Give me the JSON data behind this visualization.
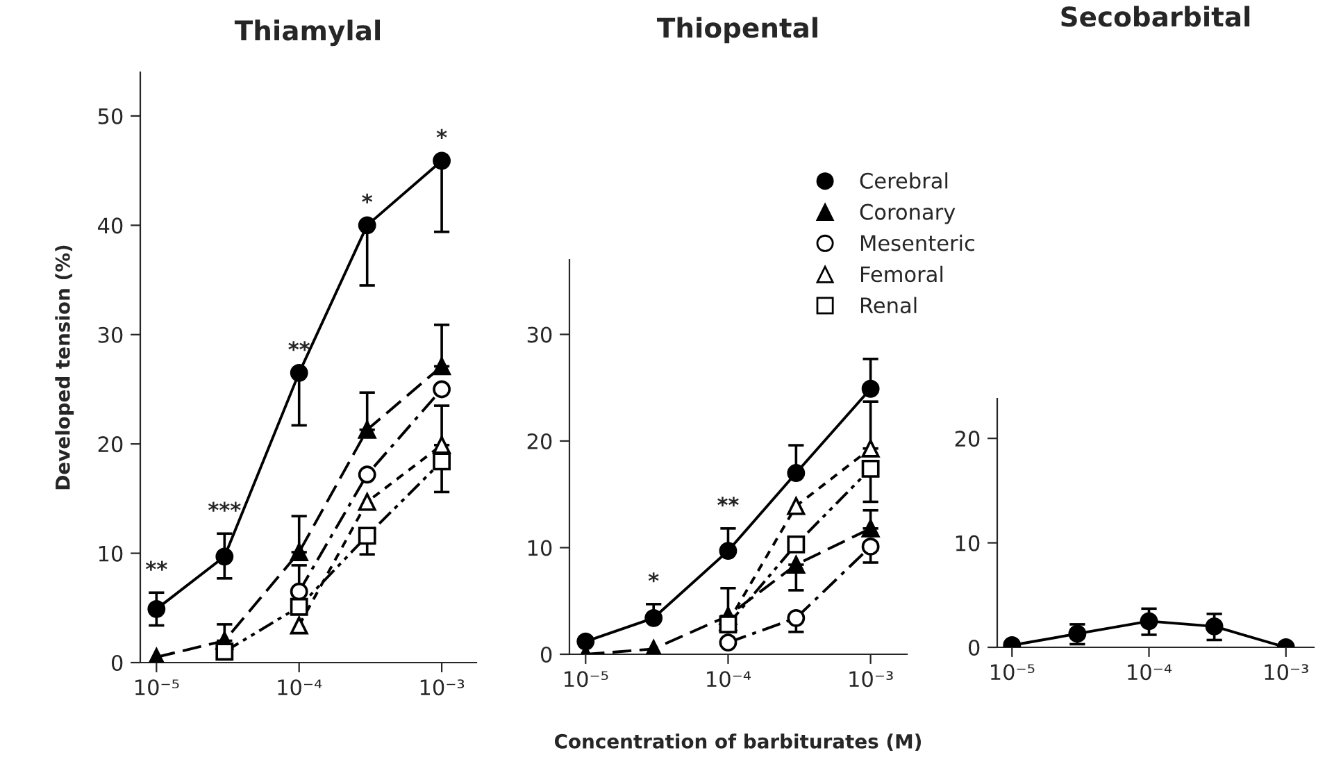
{
  "chart_data": [
    {
      "type": "line",
      "title": "Thiamylal",
      "ylabel": "Developed tension (%)",
      "x": [
        1e-05,
        3e-05,
        0.0001,
        0.0003,
        0.001
      ],
      "log": "x",
      "xlim": [
        7.7e-06,
        0.00175
      ],
      "xticks": [
        {
          "value": 1e-05,
          "label": "10⁻⁵"
        },
        {
          "value": 0.0001,
          "label": "10⁻⁴"
        },
        {
          "value": 0.001,
          "label": "10⁻³"
        }
      ],
      "ylim": [
        0,
        54
      ],
      "yticks": [
        0,
        10,
        20,
        30,
        40,
        50
      ],
      "grid": false,
      "legend": false,
      "series": [
        {
          "color": "#000000",
          "marker": "circle",
          "line_style": "solid",
          "values": [
            4.9,
            9.7,
            26.5,
            40.0,
            45.9
          ],
          "errors": [
            [
              3.4,
              6.4
            ],
            [
              7.7,
              11.8
            ],
            [
              21.7,
              26.5
            ],
            [
              34.5,
              40.0
            ],
            [
              39.4,
              45.9
            ]
          ]
        },
        {
          "color": "#000000",
          "marker": "triangle",
          "line_style": "dashed",
          "values": [
            0.5,
            2.0,
            10.1,
            21.3,
            27.1
          ],
          "errors": [
            null,
            [
              2.0,
              3.5
            ],
            [
              10.1,
              13.4
            ],
            [
              21.3,
              24.7
            ],
            [
              27.1,
              30.9
            ]
          ]
        },
        {
          "color": "#000000",
          "marker": "circle",
          "line_style": "dashdot",
          "values": [
            null,
            null,
            6.5,
            17.2,
            25.0
          ],
          "errors": [
            null,
            null,
            [
              6.5,
              8.9
            ],
            null,
            null
          ]
        },
        {
          "color": "#000000",
          "marker": "triangle",
          "line_style": "dotted",
          "values": [
            null,
            null,
            3.4,
            14.7,
            19.9
          ],
          "errors": [
            null,
            null,
            null,
            null,
            [
              19.9,
              23.5
            ]
          ]
        },
        {
          "color": "#000000",
          "marker": "square",
          "line_style": "dashdotdot",
          "values": [
            null,
            1.0,
            5.1,
            11.6,
            18.4
          ],
          "errors": [
            null,
            null,
            null,
            [
              9.9,
              11.6
            ],
            [
              15.6,
              18.4
            ]
          ]
        }
      ],
      "annotations": [
        {
          "text": "**",
          "x": 1e-05,
          "y": 6.4
        },
        {
          "text": "***",
          "x": 3e-05,
          "y": 11.8
        },
        {
          "text": "**",
          "x": 0.0001,
          "y": 26.5
        },
        {
          "text": "*",
          "x": 0.0003,
          "y": 40.0
        },
        {
          "text": "*",
          "x": 0.001,
          "y": 45.9
        }
      ]
    },
    {
      "type": "line",
      "title": "Thiopental",
      "xlabel": "Concentration of barbiturates (M)",
      "x": [
        1e-05,
        3e-05,
        0.0001,
        0.0003,
        0.001
      ],
      "log": "x",
      "xlim": [
        7.7e-06,
        0.0018
      ],
      "xticks": [
        {
          "value": 1e-05,
          "label": "10⁻⁵"
        },
        {
          "value": 0.0001,
          "label": "10⁻⁴"
        },
        {
          "value": 0.001,
          "label": "10⁻³"
        }
      ],
      "ylim": [
        0,
        37
      ],
      "yticks": [
        0,
        10,
        20,
        30
      ],
      "grid": false,
      "legend": "top right",
      "series": [
        {
          "name": "Cerebral",
          "color": "#000000",
          "marker": "circle",
          "line_style": "solid",
          "values": [
            1.2,
            3.4,
            9.7,
            17.0,
            24.9
          ],
          "errors": [
            null,
            [
              3.4,
              4.7
            ],
            [
              9.7,
              11.8
            ],
            [
              17.0,
              19.6
            ],
            [
              24.9,
              27.7
            ]
          ]
        },
        {
          "name": "Coronary",
          "color": "#000000",
          "marker": "triangle",
          "line_style": "dashed",
          "values": [
            0.0,
            0.5,
            3.6,
            8.4,
            11.8
          ],
          "errors": [
            null,
            null,
            [
              3.6,
              6.2
            ],
            [
              6.0,
              8.4
            ],
            [
              11.8,
              13.5
            ]
          ]
        },
        {
          "name": "Mesenteric",
          "color": "#000000",
          "marker": "circle",
          "line_style": "dashdot",
          "values": [
            null,
            null,
            1.1,
            3.4,
            10.1
          ],
          "errors": [
            null,
            null,
            null,
            [
              2.1,
              3.4
            ],
            [
              8.6,
              10.1
            ]
          ]
        },
        {
          "name": "Femoral",
          "color": "#000000",
          "marker": "triangle",
          "line_style": "dotted",
          "values": [
            null,
            null,
            3.0,
            13.9,
            19.3
          ],
          "errors": [
            null,
            null,
            null,
            null,
            [
              19.3,
              23.7
            ]
          ]
        },
        {
          "name": "Renal",
          "color": "#000000",
          "marker": "square",
          "line_style": "dashdotdot",
          "values": [
            null,
            null,
            2.8,
            10.3,
            17.4
          ],
          "errors": [
            null,
            null,
            null,
            null,
            [
              14.3,
              17.4
            ]
          ]
        }
      ],
      "annotations": [
        {
          "text": "*",
          "x": 3e-05,
          "y": 4.7
        },
        {
          "text": "**",
          "x": 0.0001,
          "y": 11.8
        }
      ]
    },
    {
      "type": "line",
      "title": "Secobarbital",
      "x": [
        1e-05,
        3e-05,
        0.0001,
        0.0003,
        0.001
      ],
      "log": "x",
      "xlim": [
        7.8e-06,
        0.0016
      ],
      "xticks": [
        {
          "value": 1e-05,
          "label": "10⁻⁵"
        },
        {
          "value": 0.0001,
          "label": "10⁻⁴"
        },
        {
          "value": 0.001,
          "label": "10⁻³"
        }
      ],
      "ylim": [
        0,
        23.8
      ],
      "yticks": [
        0,
        10,
        20
      ],
      "grid": false,
      "legend": false,
      "series": [
        {
          "color": "#000000",
          "marker": "circle",
          "line_style": "solid",
          "values": [
            0.2,
            1.3,
            2.5,
            2.0,
            0.0
          ],
          "errors": [
            null,
            [
              0.3,
              2.2
            ],
            [
              1.2,
              3.7
            ],
            [
              0.7,
              3.2
            ],
            null
          ]
        }
      ]
    }
  ]
}
